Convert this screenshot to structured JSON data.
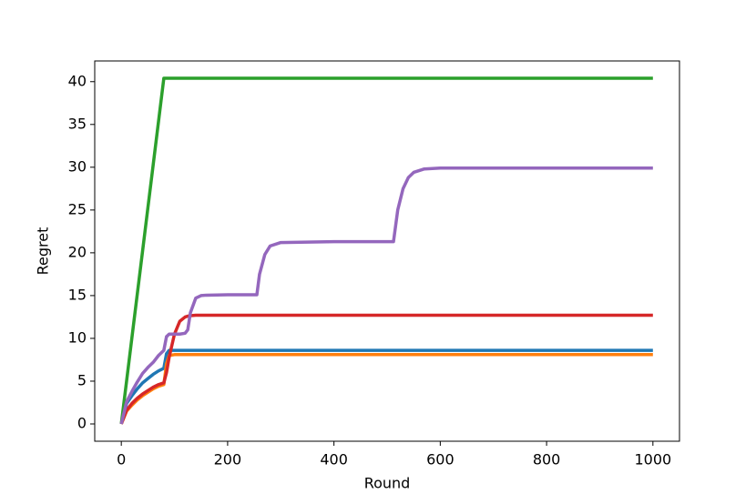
{
  "chart_data": {
    "type": "line",
    "xlabel": "Round",
    "ylabel": "Regret",
    "x": [
      0,
      10,
      20,
      30,
      40,
      50,
      60,
      70,
      80,
      85,
      90,
      100,
      110,
      120,
      125,
      130,
      140,
      150,
      160,
      200,
      255,
      260,
      270,
      280,
      300,
      350,
      400,
      450,
      512,
      520,
      530,
      540,
      550,
      570,
      600,
      700,
      800,
      900,
      1000
    ],
    "series": [
      {
        "color": "#1f77b4",
        "values": [
          0,
          2.4,
          3.3,
          4.1,
          4.8,
          5.3,
          5.8,
          6.2,
          6.5,
          8.2,
          8.6,
          8.6,
          8.6,
          8.6,
          8.6,
          8.6,
          8.6,
          8.6,
          8.6,
          8.6,
          8.6,
          8.6,
          8.6,
          8.6,
          8.6,
          8.6,
          8.6,
          8.6,
          8.6,
          8.6,
          8.6,
          8.6,
          8.6,
          8.6,
          8.6,
          8.6,
          8.6,
          8.6,
          8.6
        ]
      },
      {
        "color": "#ff7f0e",
        "values": [
          0,
          1.5,
          2.2,
          2.8,
          3.3,
          3.7,
          4.1,
          4.4,
          4.6,
          7.0,
          8.0,
          8.1,
          8.1,
          8.1,
          8.1,
          8.1,
          8.1,
          8.1,
          8.1,
          8.1,
          8.1,
          8.1,
          8.1,
          8.1,
          8.1,
          8.1,
          8.1,
          8.1,
          8.1,
          8.1,
          8.1,
          8.1,
          8.1,
          8.1,
          8.1,
          8.1,
          8.1,
          8.1,
          8.1
        ]
      },
      {
        "color": "#2ca02c",
        "values": [
          0,
          5.05,
          10.1,
          15.15,
          20.2,
          25.25,
          30.3,
          35.35,
          40.4,
          40.4,
          40.4,
          40.4,
          40.4,
          40.4,
          40.4,
          40.4,
          40.4,
          40.4,
          40.4,
          40.4,
          40.4,
          40.4,
          40.4,
          40.4,
          40.4,
          40.4,
          40.4,
          40.4,
          40.4,
          40.4,
          40.4,
          40.4,
          40.4,
          40.4,
          40.4,
          40.4,
          40.4,
          40.4,
          40.4
        ]
      },
      {
        "color": "#d62728",
        "values": [
          0,
          1.6,
          2.4,
          3.0,
          3.5,
          3.9,
          4.3,
          4.6,
          4.8,
          6.0,
          7.8,
          10.5,
          12.0,
          12.5,
          12.6,
          12.65,
          12.7,
          12.7,
          12.7,
          12.7,
          12.7,
          12.7,
          12.7,
          12.7,
          12.7,
          12.7,
          12.7,
          12.7,
          12.7,
          12.7,
          12.7,
          12.7,
          12.7,
          12.7,
          12.7,
          12.7,
          12.7,
          12.7,
          12.7
        ]
      },
      {
        "color": "#9467bd",
        "values": [
          0,
          2.6,
          3.8,
          4.9,
          5.9,
          6.6,
          7.2,
          8.0,
          8.6,
          10.2,
          10.5,
          10.5,
          10.5,
          10.6,
          11.0,
          13.0,
          14.7,
          15.0,
          15.05,
          15.1,
          15.1,
          17.5,
          19.8,
          20.8,
          21.2,
          21.25,
          21.3,
          21.3,
          21.3,
          25.0,
          27.5,
          28.8,
          29.4,
          29.8,
          29.9,
          29.9,
          29.9,
          29.9,
          29.9
        ]
      }
    ],
    "xlim": [
      -50,
      1050
    ],
    "ylim": [
      -2.02,
      42.42
    ],
    "xticks": [
      0,
      200,
      400,
      600,
      800,
      1000
    ],
    "yticks": [
      0,
      5,
      10,
      15,
      20,
      25,
      30,
      35,
      40
    ],
    "grid": false
  }
}
